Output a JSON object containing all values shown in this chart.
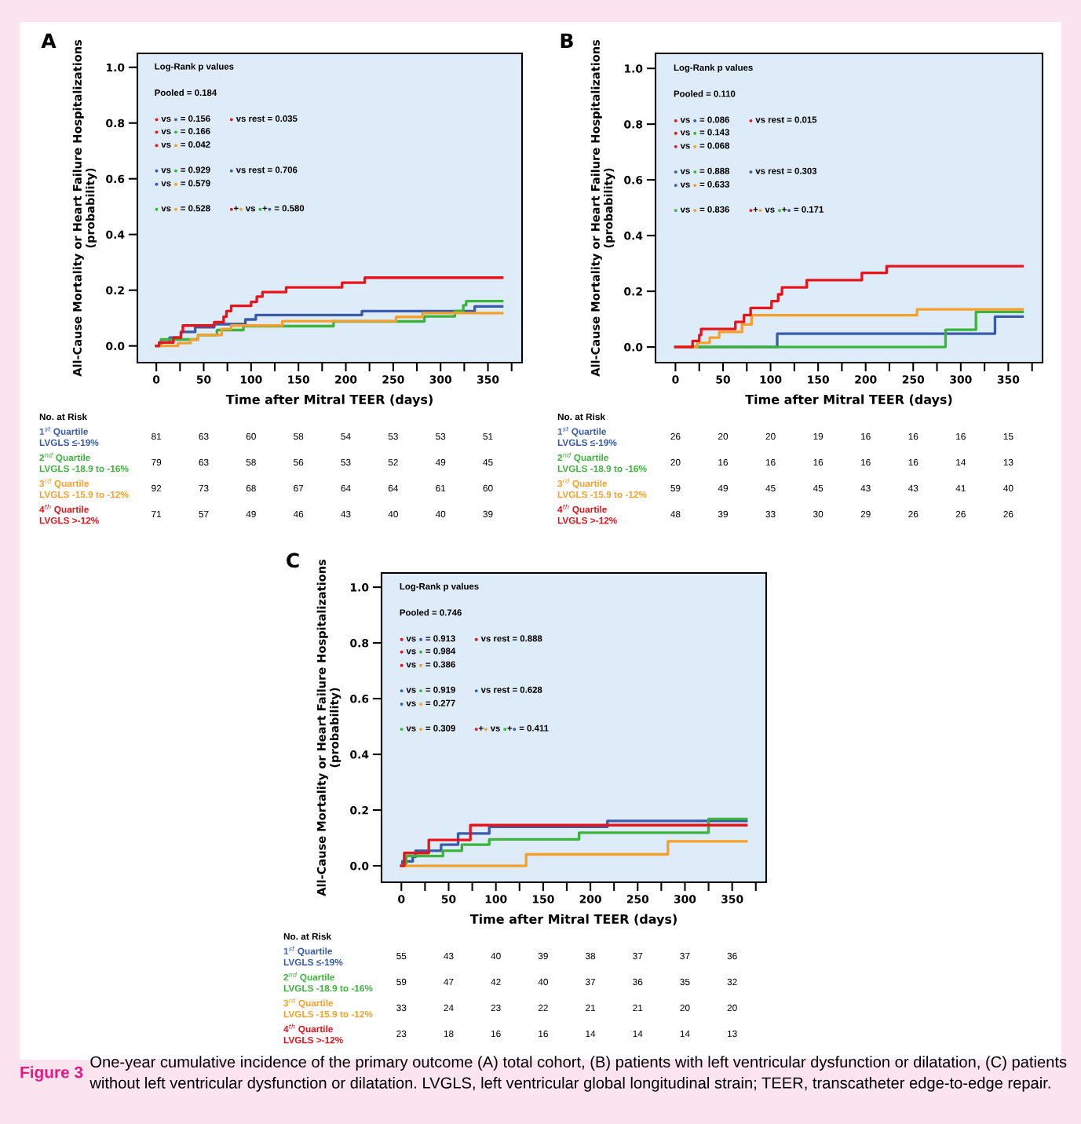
{
  "chart_data": [
    {
      "type": "step",
      "title": "A",
      "xlabel": "Time after Mitral TEER (days)",
      "ylabel": "All-Cause Mortality or Heart Failure Hospitalizations\n(probability)",
      "xlim": [
        -20,
        386
      ],
      "ylim": [
        -0.06,
        1.05
      ],
      "xticks": [
        0,
        {
          "value": 25,
          "label": null
        },
        50,
        {
          "value": 75,
          "label": null
        },
        100,
        {
          "value": 125,
          "label": null
        },
        150,
        {
          "value": 175,
          "label": null
        },
        200,
        {
          "value": 225,
          "label": null
        },
        250,
        {
          "value": 275,
          "label": null
        },
        300,
        {
          "value": 325,
          "label": null
        },
        350,
        {
          "value": 375,
          "label": null
        }
      ],
      "yticks": [
        {
          "value": 0,
          "label": "0.0"
        },
        {
          "value": 0.2,
          "label": "0.2"
        },
        {
          "value": 0.4,
          "label": "0.4"
        },
        {
          "value": 0.6,
          "label": "0.6"
        },
        {
          "value": 0.8,
          "label": "0.8"
        },
        {
          "value": 1,
          "label": "1.0"
        }
      ],
      "series": [
        {
          "name": "1$^{st}$ Quartile\nLVGLS ≤-19%",
          "color": "#3a5ba9",
          "x": [
            0,
            3,
            14,
            26,
            41,
            61,
            94,
            105,
            217,
            336,
            365
          ],
          "values": [
            0,
            0.012,
            0.03,
            0.05,
            0.067,
            0.078,
            0.095,
            0.111,
            0.125,
            0.142,
            0.142
          ]
        },
        {
          "name": "2$^{nd}$ Quartile\nLVGLS -18.9 to -16%",
          "color": "#3cb43c",
          "x": [
            0,
            5,
            44,
            64,
            92,
            187,
            283,
            315,
            324,
            327,
            365
          ],
          "values": [
            0,
            0.023,
            0.039,
            0.057,
            0.071,
            0.088,
            0.106,
            0.125,
            0.146,
            0.161,
            0.161
          ]
        },
        {
          "name": "3$^{rd}$ Quartile\nLVGLS -15.9 to -12%",
          "color": "#f5a02a",
          "x": [
            0,
            23,
            36,
            44,
            69,
            79,
            133,
            253,
            281,
            365
          ],
          "values": [
            0,
            0.01,
            0.022,
            0.039,
            0.061,
            0.073,
            0.089,
            0.104,
            0.118,
            0.118
          ]
        },
        {
          "name": "4$^{th}$ Quartile\nLVGLS >-12%",
          "color": "#e8141c",
          "x": [
            0,
            3,
            18,
            26,
            28,
            61,
            71,
            74,
            79,
            100,
            106,
            112,
            137,
            196,
            220,
            365
          ],
          "values": [
            0,
            0.012,
            0.03,
            0.05,
            0.073,
            0.085,
            0.105,
            0.125,
            0.144,
            0.158,
            0.177,
            0.193,
            0.21,
            0.227,
            0.245,
            0.245
          ]
        }
      ],
      "annotations": [
        "Log-Rank p values",
        "Pooled = 0.184",
        "● vs ● = 0.156",
        "● vs rest = 0.035",
        "● vs ● = 0.166",
        "● vs ● = 0.042",
        "● vs ● = 0.929",
        "● vs rest = 0.706",
        "● vs ● = 0.579",
        "● vs ● = 0.528",
        "●+● vs ●+● = 0.580",
        "No. at Risk",
        "81",
        "63",
        "60",
        "58",
        "54",
        "53",
        "53",
        "51",
        "79",
        "63",
        "58",
        "56",
        "53",
        "52",
        "49",
        "45",
        "92",
        "73",
        "68",
        "67",
        "64",
        "64",
        "61",
        "60",
        "71",
        "57",
        "49",
        "46",
        "43",
        "40",
        "40",
        "39"
      ]
    },
    {
      "type": "step",
      "title": "B",
      "xlabel": "Time after Mitral TEER (days)",
      "ylabel": "All-Cause Mortality or Heart Failure Hospitalizations\n(probability)",
      "xlim": [
        -21,
        386
      ],
      "ylim": [
        -0.056,
        1.054
      ],
      "xticks": [
        0,
        {
          "value": 25,
          "label": null
        },
        50,
        {
          "value": 75,
          "label": null
        },
        100,
        {
          "value": 125,
          "label": null
        },
        150,
        {
          "value": 175,
          "label": null
        },
        200,
        {
          "value": 225,
          "label": null
        },
        250,
        {
          "value": 275,
          "label": null
        },
        300,
        {
          "value": 325,
          "label": null
        },
        350,
        {
          "value": 375,
          "label": null
        }
      ],
      "yticks": [
        {
          "value": 0,
          "label": "0.0"
        },
        {
          "value": 0.2,
          "label": "0.2"
        },
        {
          "value": 0.4,
          "label": "0.4"
        },
        {
          "value": 0.6,
          "label": "0.6"
        },
        {
          "value": 0.8,
          "label": "0.8"
        },
        {
          "value": 1,
          "label": "1.0"
        }
      ],
      "series": [
        {
          "name": "1$^{st}$ Quartile\nLVGLS ≤-19%",
          "color": "#3a5ba9",
          "x": [
            0,
            107,
            336,
            365
          ],
          "values": [
            0,
            0.048,
            0.109,
            0.109
          ]
        },
        {
          "name": "2$^{nd}$ Quartile\nLVGLS -18.9 to -16%",
          "color": "#3cb43c",
          "x": [
            0,
            284,
            316,
            365
          ],
          "values": [
            0,
            0.062,
            0.126,
            0.126
          ]
        },
        {
          "name": "3$^{rd}$ Quartile\nLVGLS -15.9 to -12%",
          "color": "#f5a02a",
          "x": [
            0,
            23,
            36,
            46,
            70,
            80,
            254,
            365
          ],
          "values": [
            0,
            0.015,
            0.034,
            0.054,
            0.081,
            0.114,
            0.135,
            0.135
          ]
        },
        {
          "name": "4$^{th}$ Quartile\nLVGLS >-12%",
          "color": "#e8141c",
          "x": [
            0,
            18,
            25,
            27,
            63,
            72,
            79,
            101,
            108,
            112,
            138,
            196,
            222,
            365
          ],
          "values": [
            0,
            0.022,
            0.043,
            0.065,
            0.09,
            0.115,
            0.14,
            0.165,
            0.189,
            0.214,
            0.24,
            0.266,
            0.29,
            0.29
          ]
        }
      ],
      "annotations": [
        "Log-Rank p values",
        "Pooled = 0.110",
        "● vs ● = 0.086",
        "● vs rest = 0.015",
        "● vs ● = 0.143",
        "● vs ● = 0.068",
        "● vs ● = 0.888",
        "● vs rest = 0.303",
        "● vs ● = 0.633",
        "● vs ● = 0.836",
        "●+● vs ●+● = 0.171",
        "No. at Risk",
        "26",
        "20",
        "20",
        "19",
        "16",
        "16",
        "16",
        "15",
        "20",
        "16",
        "16",
        "16",
        "16",
        "16",
        "14",
        "13",
        "59",
        "49",
        "45",
        "45",
        "43",
        "43",
        "41",
        "40",
        "48",
        "39",
        "33",
        "30",
        "29",
        "26",
        "26",
        "26"
      ]
    },
    {
      "type": "step",
      "title": "C",
      "xlabel": "Time after Mitral TEER (days)",
      "ylabel": "All-Cause Mortality or Heart Failure Hospitalizations\n(probability)",
      "xlim": [
        -21,
        386
      ],
      "ylim": [
        -0.059,
        1.051
      ],
      "xticks": [
        0,
        {
          "value": 25,
          "label": null
        },
        50,
        {
          "value": 75,
          "label": null
        },
        100,
        {
          "value": 125,
          "label": null
        },
        150,
        {
          "value": 175,
          "label": null
        },
        200,
        {
          "value": 225,
          "label": null
        },
        250,
        {
          "value": 275,
          "label": null
        },
        300,
        {
          "value": 325,
          "label": null
        },
        350,
        {
          "value": 375,
          "label": null
        }
      ],
      "yticks": [
        {
          "value": 0,
          "label": "0.0"
        },
        {
          "value": 0.2,
          "label": "0.2"
        },
        {
          "value": 0.4,
          "label": "0.4"
        },
        {
          "value": 0.6,
          "label": "0.6"
        },
        {
          "value": 0.8,
          "label": "0.8"
        },
        {
          "value": 1,
          "label": "1.0"
        }
      ],
      "series": [
        {
          "name": "1$^{st}$ Quartile\nLVGLS ≤-19%",
          "color": "#3a5ba9",
          "x": [
            0,
            1,
            12,
            15,
            42,
            60,
            93,
            218,
            365
          ],
          "values": [
            0,
            0.016,
            0.032,
            0.054,
            0.076,
            0.116,
            0.14,
            0.161,
            0.161
          ]
        },
        {
          "name": "2$^{nd}$ Quartile\nLVGLS -18.9 to -16%",
          "color": "#3cb43c",
          "x": [
            0,
            5,
            44,
            64,
            93,
            188,
            325,
            365
          ],
          "values": [
            0,
            0.035,
            0.054,
            0.076,
            0.095,
            0.119,
            0.168,
            0.168
          ]
        },
        {
          "name": "3$^{rd}$ Quartile\nLVGLS -15.9 to -12%",
          "color": "#f5a02a",
          "x": [
            0,
            132,
            282,
            365
          ],
          "values": [
            0,
            0.041,
            0.088,
            0.088
          ]
        },
        {
          "name": "4$^{th}$ Quartile\nLVGLS >-12%",
          "color": "#e8141c",
          "x": [
            0,
            3,
            29,
            73,
            365
          ],
          "values": [
            0,
            0.046,
            0.093,
            0.146,
            0.146
          ]
        }
      ],
      "annotations": [
        "Log-Rank p values",
        "Pooled = 0.746",
        "● vs ● = 0.913",
        "● vs rest = 0.888",
        "● vs ● = 0.984",
        "● vs ● = 0.386",
        "● vs ● = 0.919",
        "● vs rest = 0.628",
        "● vs ● = 0.277",
        "● vs ● = 0.309",
        "●+● vs ●+● = 0.411",
        "No. at Risk",
        "55",
        "43",
        "40",
        "39",
        "38",
        "37",
        "37",
        "36",
        "59",
        "47",
        "42",
        "40",
        "37",
        "36",
        "35",
        "32",
        "33",
        "24",
        "23",
        "22",
        "21",
        "21",
        "20",
        "20",
        "23",
        "18",
        "16",
        "16",
        "14",
        "14",
        "14",
        "13",
        "Figure 3",
        "One-year cumulative incidence of the primary outcome (A) total cohort, (B) patients with left ventricular dysfunction or dilatation, (C) patients without left ventricular dysfunction or dilatation. LVGLS, left ventricular global longitudinal strain; TEER, transcatheter edge-to-edge repair."
      ]
    }
  ]
}
